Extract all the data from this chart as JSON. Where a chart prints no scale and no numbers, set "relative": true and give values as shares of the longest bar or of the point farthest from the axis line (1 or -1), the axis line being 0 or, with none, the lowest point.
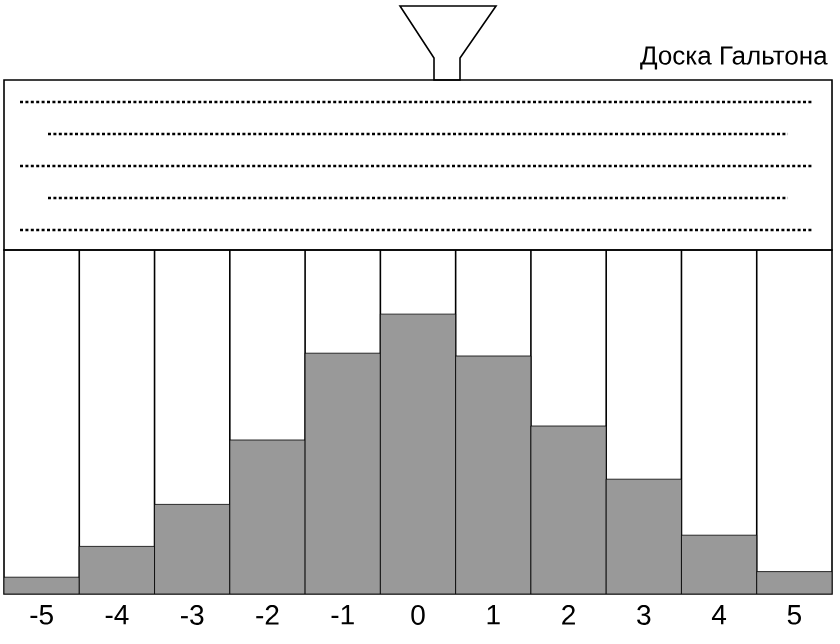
{
  "chart_data": {
    "type": "bar",
    "title": "Доска Гальтона",
    "relative": true,
    "categories": [
      "-5",
      "-4",
      "-3",
      "-2",
      "-1",
      "0",
      "1",
      "2",
      "3",
      "4",
      "5"
    ],
    "values": [
      0.06,
      0.17,
      0.32,
      0.55,
      0.86,
      1,
      0.85,
      0.6,
      0.41,
      0.21,
      0.08
    ],
    "color": "#999999"
  }
}
